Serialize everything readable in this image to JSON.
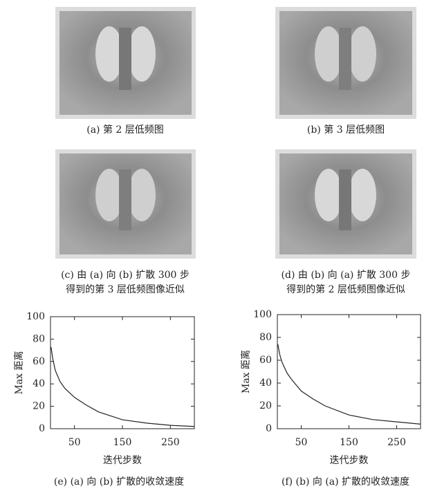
{
  "panels": [
    {
      "caption": [
        "(a) 第 2 层低频图"
      ]
    },
    {
      "caption": [
        "(b) 第 3 层低频图"
      ]
    },
    {
      "caption": [
        "(c) 由 (a) 向 (b) 扩散 300 步",
        "得到的第 3 层低频图像近似"
      ]
    },
    {
      "caption": [
        "(d) 由 (b) 向 (a) 扩散 300 步",
        "得到的第 2 层低频图像近似"
      ]
    }
  ],
  "chart_data": [
    {
      "type": "line",
      "caption": "(e) (a) 向 (b) 扩散的收敛速度",
      "xlabel": "迭代步数",
      "ylabel": "Max 距离",
      "x": [
        1,
        5,
        10,
        20,
        30,
        40,
        50,
        75,
        100,
        150,
        200,
        250,
        300
      ],
      "values": [
        73,
        62,
        52,
        42,
        36,
        32,
        28,
        21,
        15,
        8,
        5,
        3,
        2
      ],
      "color": "#222222",
      "xlim": [
        0,
        300
      ],
      "xticks": [
        50,
        150,
        250
      ],
      "ylim": [
        0,
        100
      ],
      "yticks": [
        0,
        20,
        40,
        60,
        80,
        100
      ],
      "grid": false
    },
    {
      "type": "line",
      "caption": "(f) (b) 向 (a) 扩散的收敛速度",
      "xlabel": "迭代步数",
      "ylabel": "Max 距离",
      "x": [
        1,
        5,
        10,
        20,
        30,
        40,
        50,
        75,
        100,
        150,
        200,
        250,
        300
      ],
      "values": [
        74,
        65,
        58,
        49,
        43,
        38,
        33,
        26,
        20,
        12,
        8,
        6,
        4
      ],
      "color": "#222222",
      "xlim": [
        0,
        300
      ],
      "xticks": [
        50,
        150,
        250
      ],
      "ylim": [
        0,
        100
      ],
      "yticks": [
        0,
        20,
        40,
        60,
        80,
        100
      ],
      "grid": false
    }
  ]
}
